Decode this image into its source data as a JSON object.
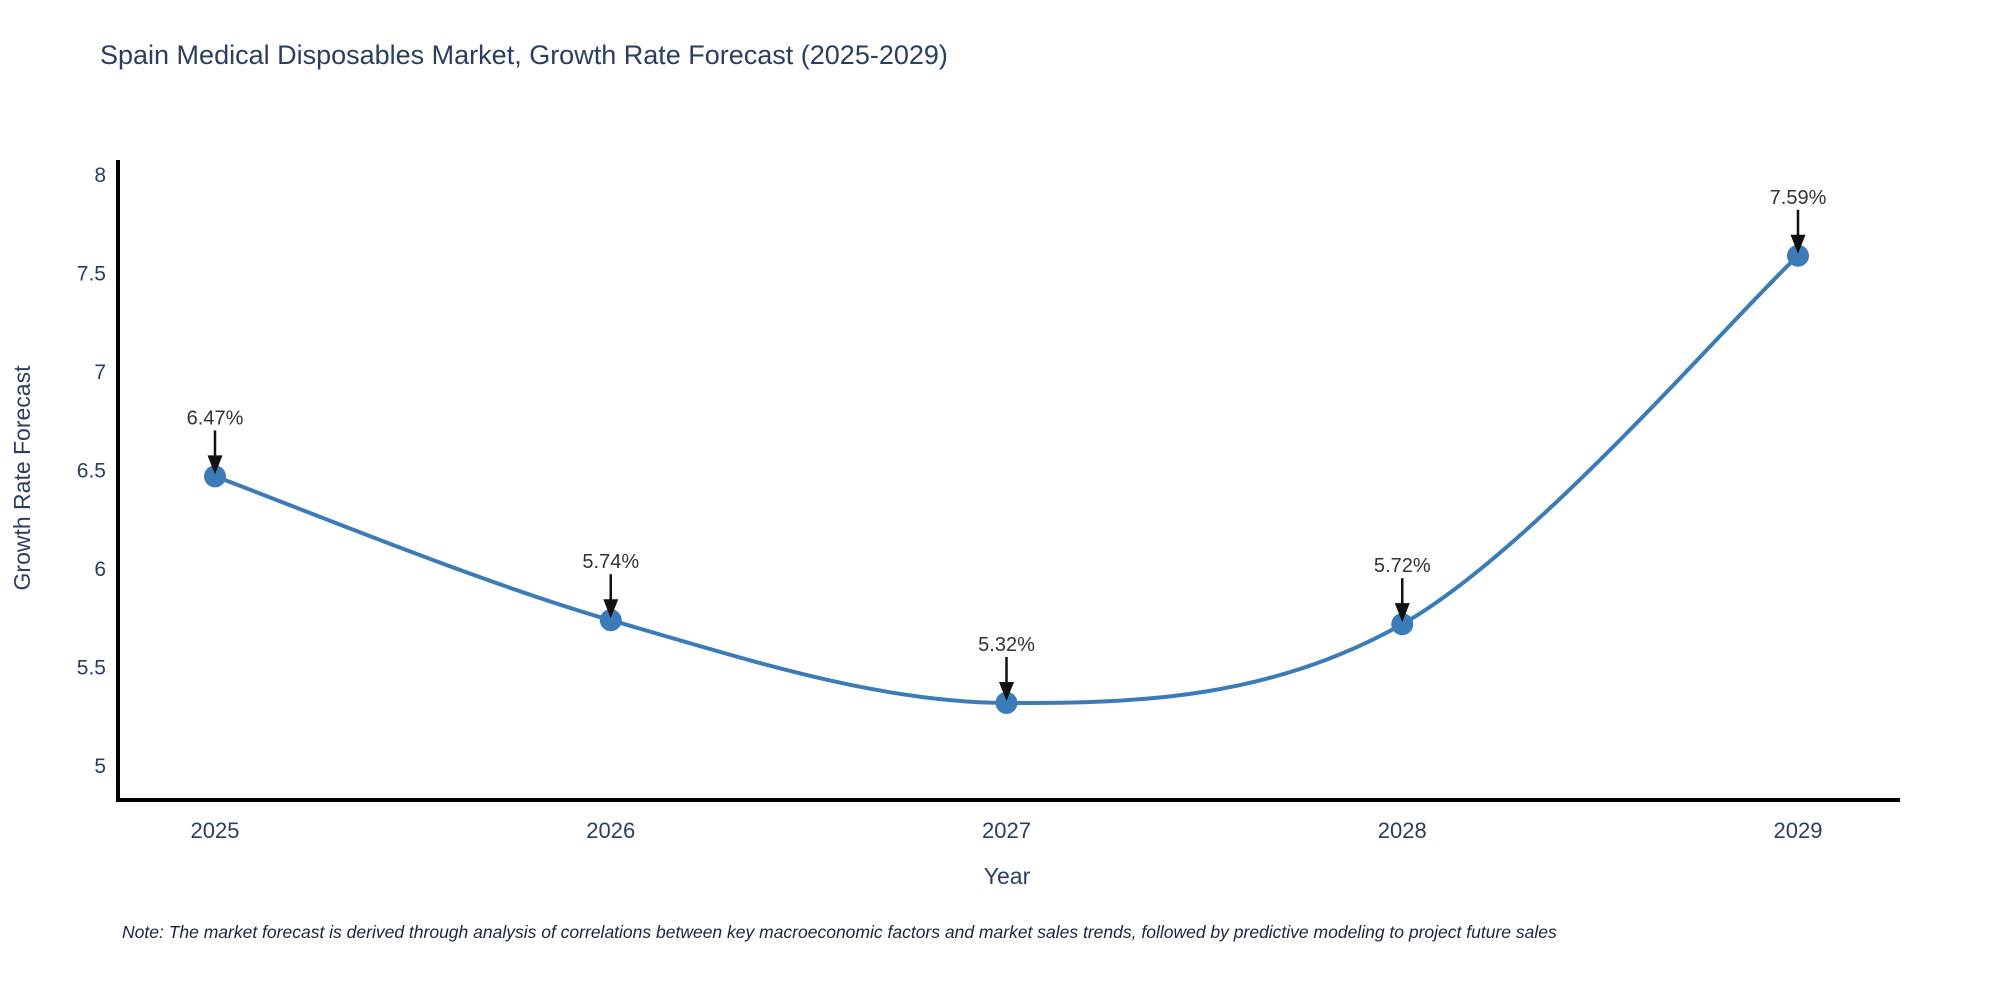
{
  "title": "Spain Medical Disposables Market, Growth Rate Forecast (2025-2029)",
  "note": "Note: The market forecast is derived through analysis of correlations between key macroeconomic factors and market sales trends, followed by predictive modeling to project future sales",
  "colors": {
    "text": "#2a3f5f",
    "annotation_text": "#333333",
    "axis_line": "#000000",
    "arrow": "#111111",
    "series_line": "#3b7cb8",
    "marker": "#3b7cb8",
    "background": "#ffffff"
  },
  "chart_data": {
    "type": "line",
    "line_shape": "spline",
    "title": "Spain Medical Disposables Market, Growth Rate Forecast (2025-2029)",
    "xlabel": "Year",
    "ylabel": "Growth Rate Forecast",
    "categories": [
      "2025",
      "2026",
      "2027",
      "2028",
      "2029"
    ],
    "values": [
      6.47,
      5.74,
      5.32,
      5.72,
      7.59
    ],
    "point_labels": [
      "6.47%",
      "5.74%",
      "5.32%",
      "5.72%",
      "7.59%"
    ],
    "yticks": [
      5,
      5.5,
      6,
      6.5,
      7,
      7.5,
      8
    ],
    "ytick_labels": [
      "5",
      "5.5",
      "6",
      "6.5",
      "7",
      "7.5",
      "8"
    ],
    "ylim": [
      4.83,
      8.08
    ],
    "grid": false,
    "legend": "none",
    "annotations": "value labels with downward arrows above each point"
  }
}
